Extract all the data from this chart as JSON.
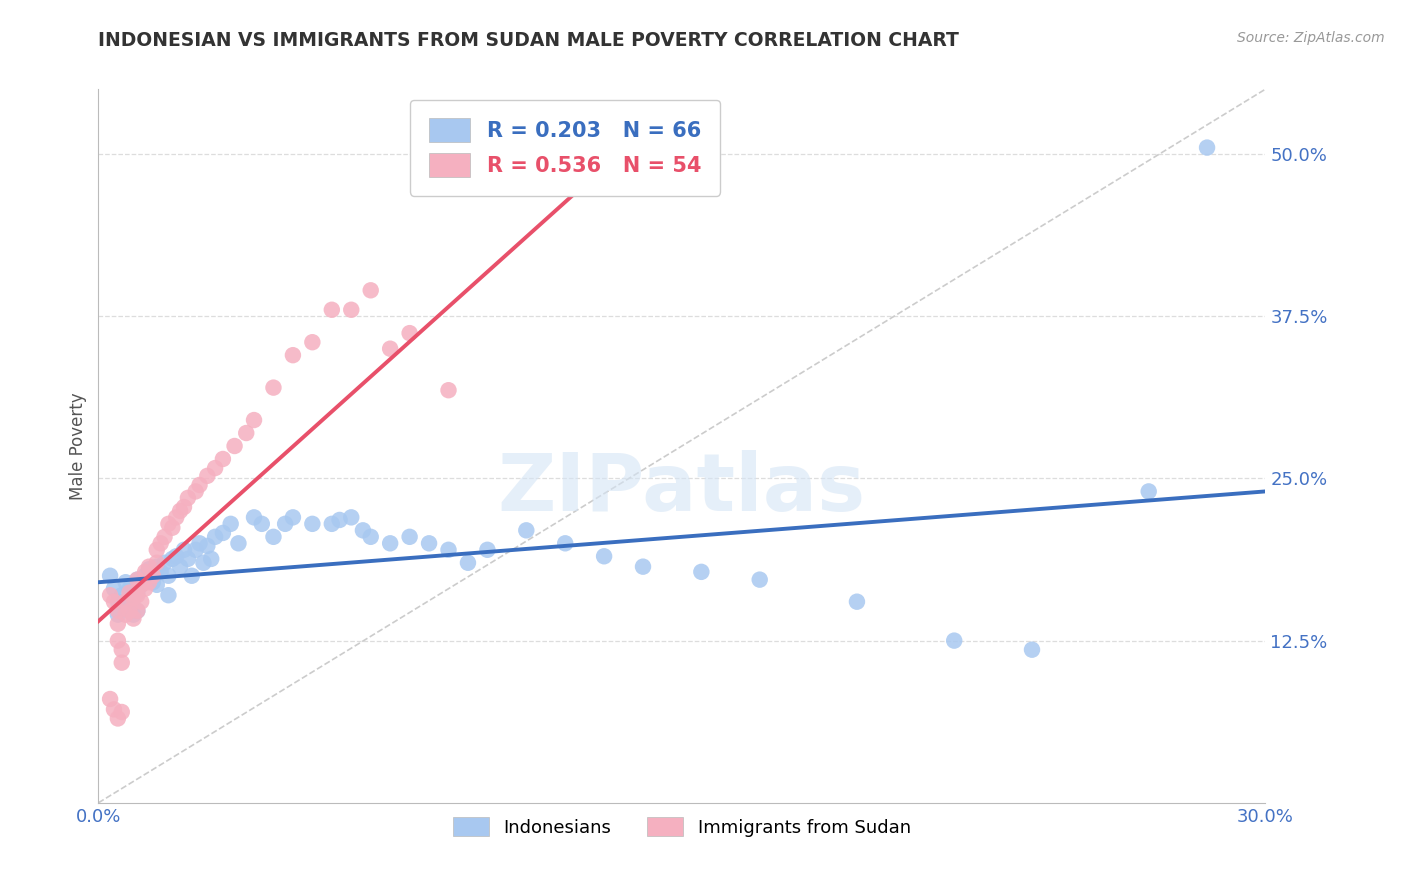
{
  "title": "INDONESIAN VS IMMIGRANTS FROM SUDAN MALE POVERTY CORRELATION CHART",
  "source_text": "Source: ZipAtlas.com",
  "ylabel": "Male Poverty",
  "xlim": [
    0.0,
    0.3
  ],
  "ylim": [
    0.0,
    0.55
  ],
  "xtick_vals": [
    0.0,
    0.05,
    0.1,
    0.15,
    0.2,
    0.25,
    0.3
  ],
  "xtick_labels": [
    "0.0%",
    "",
    "",
    "",
    "",
    "",
    "30.0%"
  ],
  "ytick_vals": [
    0.125,
    0.25,
    0.375,
    0.5
  ],
  "ytick_labels": [
    "12.5%",
    "25.0%",
    "37.5%",
    "50.0%"
  ],
  "R_blue": 0.203,
  "N_blue": 66,
  "R_pink": 0.536,
  "N_pink": 54,
  "blue_color": "#A8C8F0",
  "pink_color": "#F5B0C0",
  "blue_line_color": "#3A6EBF",
  "pink_line_color": "#E8506A",
  "ref_line_color": "#CCCCCC",
  "grid_color": "#DDDDDD",
  "legend_label_blue": "Indonesians",
  "legend_label_pink": "Immigrants from Sudan",
  "watermark": "ZIPatlas",
  "background_color": "#FFFFFF",
  "title_color": "#333333",
  "axis_tick_color": "#4472C4",
  "ylabel_color": "#555555",
  "blue_x": [
    0.003,
    0.004,
    0.005,
    0.005,
    0.006,
    0.007,
    0.007,
    0.008,
    0.009,
    0.009,
    0.01,
    0.01,
    0.01,
    0.011,
    0.012,
    0.013,
    0.014,
    0.015,
    0.015,
    0.016,
    0.017,
    0.018,
    0.018,
    0.019,
    0.02,
    0.021,
    0.022,
    0.023,
    0.024,
    0.025,
    0.026,
    0.027,
    0.028,
    0.029,
    0.03,
    0.032,
    0.034,
    0.036,
    0.04,
    0.042,
    0.045,
    0.048,
    0.05,
    0.055,
    0.06,
    0.062,
    0.065,
    0.068,
    0.07,
    0.075,
    0.08,
    0.085,
    0.09,
    0.095,
    0.1,
    0.11,
    0.12,
    0.13,
    0.14,
    0.155,
    0.17,
    0.195,
    0.22,
    0.24,
    0.27,
    0.285
  ],
  "blue_y": [
    0.175,
    0.165,
    0.155,
    0.145,
    0.16,
    0.17,
    0.155,
    0.165,
    0.158,
    0.145,
    0.172,
    0.162,
    0.148,
    0.168,
    0.175,
    0.18,
    0.17,
    0.182,
    0.168,
    0.178,
    0.185,
    0.175,
    0.16,
    0.188,
    0.19,
    0.182,
    0.195,
    0.188,
    0.175,
    0.195,
    0.2,
    0.185,
    0.198,
    0.188,
    0.205,
    0.208,
    0.215,
    0.2,
    0.22,
    0.215,
    0.205,
    0.215,
    0.22,
    0.215,
    0.215,
    0.218,
    0.22,
    0.21,
    0.205,
    0.2,
    0.205,
    0.2,
    0.195,
    0.185,
    0.195,
    0.21,
    0.2,
    0.19,
    0.182,
    0.178,
    0.172,
    0.155,
    0.125,
    0.118,
    0.24,
    0.505
  ],
  "pink_x": [
    0.003,
    0.004,
    0.005,
    0.005,
    0.005,
    0.006,
    0.006,
    0.007,
    0.007,
    0.008,
    0.008,
    0.009,
    0.009,
    0.01,
    0.01,
    0.01,
    0.011,
    0.011,
    0.012,
    0.012,
    0.013,
    0.013,
    0.014,
    0.015,
    0.015,
    0.016,
    0.017,
    0.018,
    0.019,
    0.02,
    0.021,
    0.022,
    0.023,
    0.025,
    0.026,
    0.028,
    0.03,
    0.032,
    0.035,
    0.038,
    0.04,
    0.045,
    0.05,
    0.055,
    0.06,
    0.065,
    0.07,
    0.075,
    0.08,
    0.09,
    0.003,
    0.004,
    0.005,
    0.006
  ],
  "pink_y": [
    0.16,
    0.155,
    0.148,
    0.138,
    0.125,
    0.118,
    0.108,
    0.155,
    0.145,
    0.162,
    0.148,
    0.158,
    0.142,
    0.172,
    0.16,
    0.148,
    0.168,
    0.155,
    0.178,
    0.165,
    0.182,
    0.17,
    0.175,
    0.195,
    0.185,
    0.2,
    0.205,
    0.215,
    0.212,
    0.22,
    0.225,
    0.228,
    0.235,
    0.24,
    0.245,
    0.252,
    0.258,
    0.265,
    0.275,
    0.285,
    0.295,
    0.32,
    0.345,
    0.355,
    0.38,
    0.38,
    0.395,
    0.35,
    0.362,
    0.318,
    0.08,
    0.072,
    0.065,
    0.07
  ]
}
